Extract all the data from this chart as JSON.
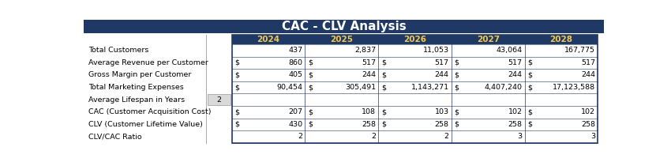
{
  "title": "CAC - CLV Analysis",
  "title_bg": "#1F3864",
  "title_color": "#FFFFFF",
  "header_bg": "#1F3864",
  "header_color": "#F2C94C",
  "table_border_color": "#1F3864",
  "row_line_color": "#AAAACC",
  "highlight_bg": "#D9D9D9",
  "years": [
    "2024",
    "2025",
    "2026",
    "2027",
    "2028"
  ],
  "row_labels": [
    "Total Customers",
    "Average Revenue per Customer",
    "Gross Margin per Customer",
    "Total Marketing Expenses",
    "Average Lifespan in Years",
    "CAC (Customer Acquisition Cost)",
    "CLV (Customer Lifetime Value)",
    "CLV/CAC Ratio"
  ],
  "currency_rows": [
    1,
    2,
    3,
    5,
    6
  ],
  "data": [
    [
      437,
      2837,
      11053,
      43064,
      167775
    ],
    [
      860,
      517,
      517,
      517,
      517
    ],
    [
      405,
      244,
      244,
      244,
      244
    ],
    [
      90454,
      305491,
      1143271,
      4407240,
      17123588
    ],
    [
      null,
      null,
      null,
      null,
      null
    ],
    [
      207,
      108,
      103,
      102,
      102
    ],
    [
      430,
      258,
      258,
      258,
      258
    ],
    [
      2,
      2,
      2,
      3,
      3
    ]
  ],
  "avg_lifespan_val": "2",
  "font_size": 6.8,
  "header_font_size": 7.5,
  "title_font_size": 11,
  "label_font_size": 6.8
}
